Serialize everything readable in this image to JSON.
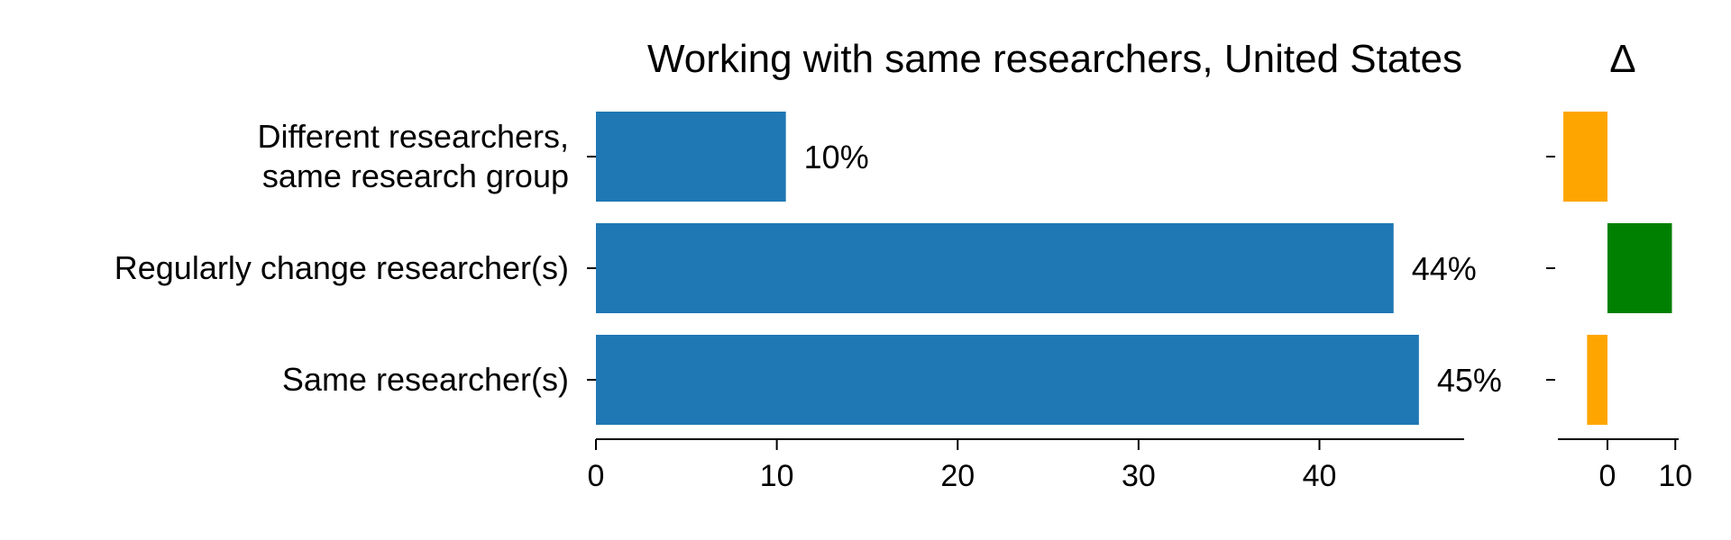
{
  "chart_data": [
    {
      "type": "bar",
      "orientation": "horizontal",
      "title": "Working with same researchers, United States",
      "categories": [
        "Different researchers,\nsame research group",
        "Regularly change researcher(s)",
        "Same researcher(s)"
      ],
      "values": [
        10.5,
        44.1,
        45.5
      ],
      "data_labels": [
        "10%",
        "44%",
        "45%"
      ],
      "xlim": [
        0,
        48
      ],
      "xticks": [
        0,
        10,
        20,
        30,
        40
      ],
      "xlabel": "",
      "ylabel": "",
      "grid": false,
      "colors": {
        "bar": "#1f77b4"
      }
    },
    {
      "type": "bar",
      "orientation": "horizontal",
      "title": "Δ",
      "categories": [
        "Different researchers,\nsame research group",
        "Regularly change researcher(s)",
        "Same researcher(s)"
      ],
      "values": [
        -6.5,
        9.5,
        -3.0
      ],
      "xlim": [
        -7.3,
        10.5
      ],
      "xticks": [
        0,
        10
      ],
      "grid": false,
      "colors": {
        "negative": "#ffa500",
        "positive": "#008000"
      }
    }
  ]
}
